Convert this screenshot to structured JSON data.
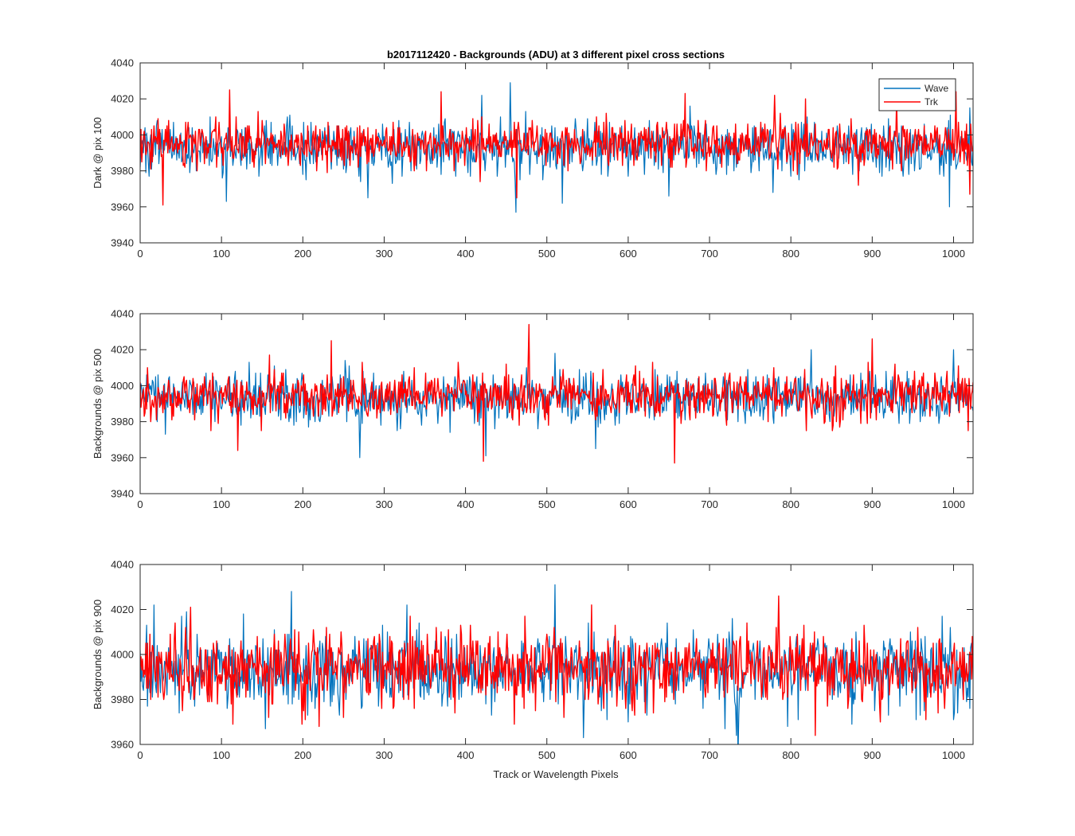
{
  "figure": {
    "title": "b2017112420 - Backgrounds (ADU) at 3 different pixel cross sections",
    "xlabel": "Track or Wavelength Pixels"
  },
  "chart_data": [
    {
      "type": "line",
      "title": "b2017112420 - Backgrounds (ADU) at 3 different pixel cross sections",
      "xlabel": "",
      "ylabel": "Dark @ pix 100",
      "xlim": [
        0,
        1024
      ],
      "ylim": [
        3940,
        4040
      ],
      "xticks": [
        0,
        100,
        200,
        300,
        400,
        500,
        600,
        700,
        800,
        900,
        1000
      ],
      "yticks": [
        3940,
        3960,
        3980,
        4000,
        4020,
        4040
      ],
      "grid": false,
      "legend": "top-right",
      "series": [
        {
          "name": "Wave",
          "color": "#0072BD",
          "mean": 3993,
          "sd": 7.2,
          "seed": 101,
          "spikes": [
            [
              106,
              3963
            ],
            [
              280,
              3965
            ],
            [
              455,
              4029
            ],
            [
              462,
              3957
            ],
            [
              519,
              3962
            ],
            [
              778,
              3968
            ],
            [
              995,
              3960
            ],
            [
              420,
              4022
            ],
            [
              650,
              3966
            ]
          ]
        },
        {
          "name": "Trk",
          "color": "#FF0000",
          "mean": 3995,
          "sd": 6.3,
          "seed": 202,
          "spikes": [
            [
              28,
              3961
            ],
            [
              110,
              4025
            ],
            [
              370,
              4024
            ],
            [
              463,
              3965
            ],
            [
              670,
              4023
            ],
            [
              780,
              4022
            ],
            [
              1003,
              4024
            ],
            [
              1020,
              3967
            ],
            [
              930,
              4020
            ]
          ]
        }
      ]
    },
    {
      "type": "line",
      "xlabel": "",
      "ylabel": "Backgrounds @ pix 500",
      "xlim": [
        0,
        1024
      ],
      "ylim": [
        3940,
        4040
      ],
      "xticks": [
        0,
        100,
        200,
        300,
        400,
        500,
        600,
        700,
        800,
        900,
        1000
      ],
      "yticks": [
        3940,
        3960,
        3980,
        4000,
        4020,
        4040
      ],
      "grid": false,
      "series": [
        {
          "name": "Wave",
          "color": "#0072BD",
          "mean": 3993,
          "sd": 7.0,
          "seed": 303,
          "spikes": [
            [
              270,
              3960
            ],
            [
              425,
              3961
            ],
            [
              510,
              4018
            ],
            [
              825,
              4020
            ],
            [
              1000,
              4020
            ],
            [
              560,
              3965
            ]
          ]
        },
        {
          "name": "Trk",
          "color": "#FF0000",
          "mean": 3994,
          "sd": 6.6,
          "seed": 404,
          "spikes": [
            [
              478,
              4034
            ],
            [
              422,
              3958
            ],
            [
              657,
              3957
            ],
            [
              900,
              4026
            ],
            [
              235,
              4025
            ],
            [
              120,
              3964
            ]
          ]
        }
      ]
    },
    {
      "type": "line",
      "xlabel": "Track or Wavelength Pixels",
      "ylabel": "Backgrounds @ pix 900",
      "xlim": [
        0,
        1024
      ],
      "ylim": [
        3960,
        4040
      ],
      "xticks": [
        0,
        100,
        200,
        300,
        400,
        500,
        600,
        700,
        800,
        900,
        1000
      ],
      "yticks": [
        3960,
        3980,
        4000,
        4020,
        4040
      ],
      "grid": false,
      "series": [
        {
          "name": "Wave",
          "color": "#0072BD",
          "mean": 3993,
          "sd": 8.4,
          "seed": 505,
          "spikes": [
            [
              186,
              4028
            ],
            [
              510,
              4031
            ],
            [
              733,
              3964
            ],
            [
              17,
              4022
            ],
            [
              328,
              4022
            ],
            [
              600,
              3970
            ]
          ]
        },
        {
          "name": "Trk",
          "color": "#FF0000",
          "mean": 3994,
          "sd": 7.8,
          "seed": 606,
          "spikes": [
            [
              220,
              3968
            ],
            [
              555,
              4022
            ],
            [
              785,
              4026
            ],
            [
              830,
              3964
            ],
            [
              62,
              4021
            ],
            [
              460,
              3969
            ],
            [
              910,
              3970
            ]
          ]
        }
      ]
    }
  ]
}
